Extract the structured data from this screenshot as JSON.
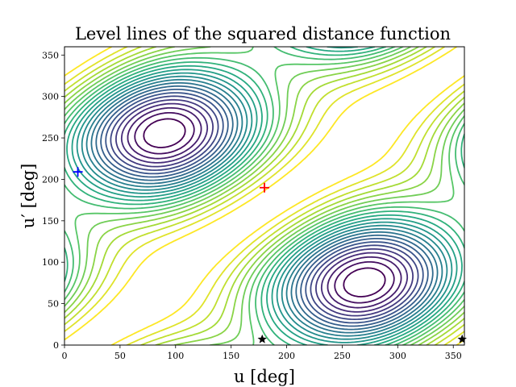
{
  "chart_data": {
    "type": "contour",
    "title": "Level lines of the squared distance function",
    "xlabel": "u [deg]",
    "ylabel": "u′ [deg]",
    "xlim": [
      0,
      360
    ],
    "ylim": [
      0,
      360
    ],
    "xticks": [
      0,
      50,
      100,
      150,
      200,
      250,
      300,
      350
    ],
    "yticks": [
      0,
      50,
      100,
      150,
      200,
      250,
      300,
      350
    ],
    "grid": false,
    "colormap": "viridis",
    "level_count": 24,
    "markers": [
      {
        "type": "plus",
        "color": "#ff0000",
        "x": 180,
        "y": 190
      },
      {
        "type": "plus",
        "color": "#0000ff",
        "x": 12,
        "y": 209
      },
      {
        "type": "star",
        "color": "#000000",
        "x": 178,
        "y": 7
      },
      {
        "type": "star",
        "color": "#000000",
        "x": 358,
        "y": 7
      }
    ]
  }
}
